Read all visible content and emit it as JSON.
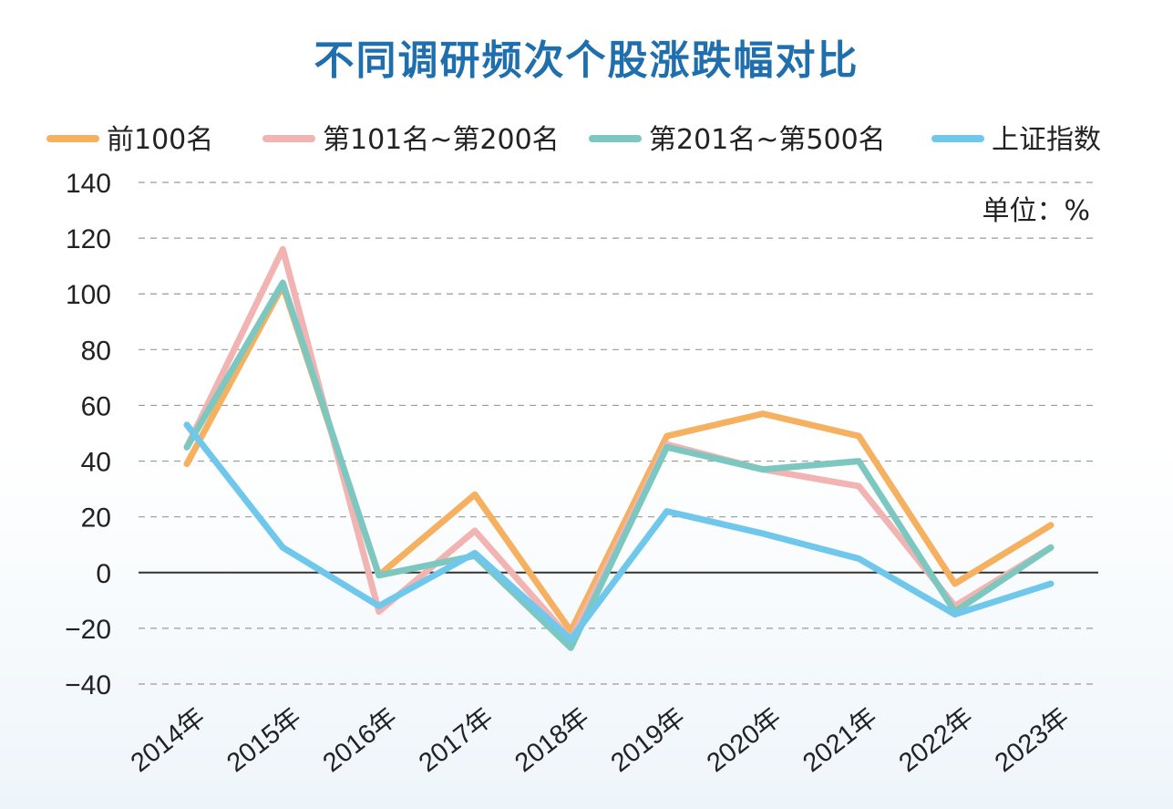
{
  "chart_data": {
    "type": "line",
    "title": "不同调研频次个股涨跌幅对比",
    "unit_label": "单位：%",
    "categories": [
      "2014年",
      "2015年",
      "2016年",
      "2017年",
      "2018年",
      "2019年",
      "2020年",
      "2021年",
      "2022年",
      "2023年"
    ],
    "ylim": [
      -40,
      140
    ],
    "yticks": [
      140,
      120,
      100,
      80,
      60,
      40,
      20,
      0,
      -20,
      -40
    ],
    "grid": true,
    "legend_position": "top",
    "series": [
      {
        "name": "前100名",
        "color": "#f5b060",
        "values": [
          39,
          103,
          -1,
          28,
          -21,
          49,
          57,
          49,
          -4,
          17
        ]
      },
      {
        "name": "第101名~第200名",
        "color": "#f2b3b3",
        "values": [
          45,
          116,
          -14,
          15,
          -24,
          46,
          37,
          31,
          -12,
          9
        ]
      },
      {
        "name": "第201名~第500名",
        "color": "#7cc8c0",
        "values": [
          45,
          104,
          -1,
          6,
          -27,
          45,
          37,
          40,
          -14,
          9
        ]
      },
      {
        "name": "上证指数",
        "color": "#6fc7ec",
        "values": [
          53,
          9,
          -12,
          7,
          -24,
          22,
          14,
          5,
          -15,
          -4
        ]
      }
    ]
  }
}
